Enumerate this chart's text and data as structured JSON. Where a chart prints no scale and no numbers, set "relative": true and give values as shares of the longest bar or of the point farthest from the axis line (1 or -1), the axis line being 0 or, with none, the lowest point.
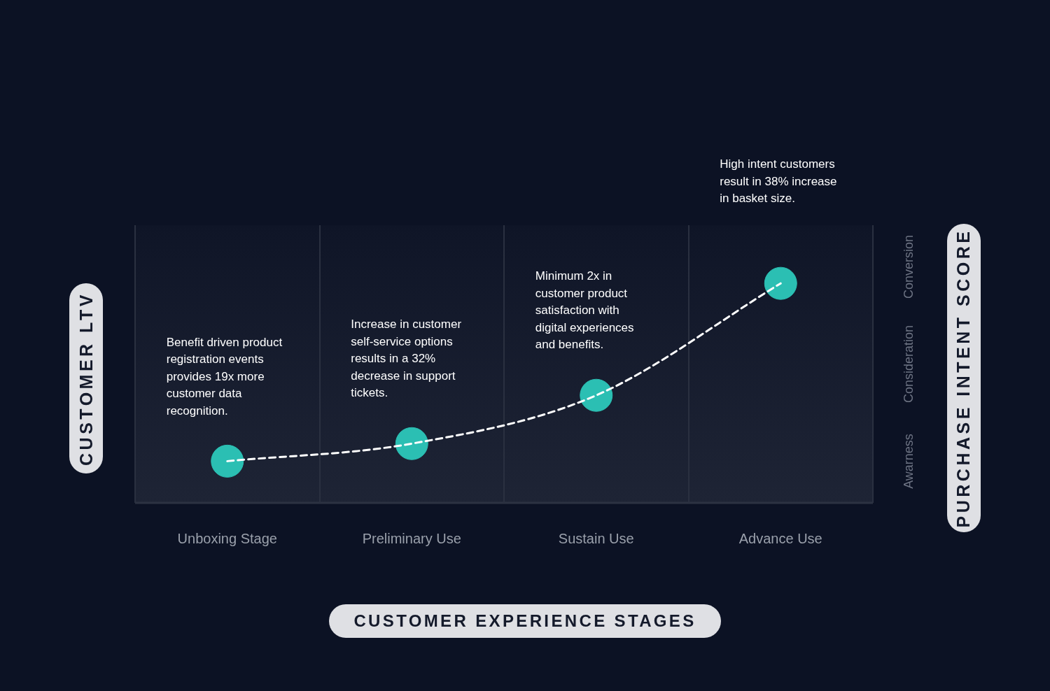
{
  "chart_data": {
    "type": "line",
    "relative": true,
    "xlabel": "CUSTOMER EXPERIENCE STAGES",
    "ylabel": "CUSTOMER LTV",
    "y2label": "PURCHASE INTENT SCORE",
    "categories": [
      "Unboxing Stage",
      "Preliminary Use",
      "Sustain Use",
      "Advance Use"
    ],
    "series": [
      {
        "color": "#ffffff",
        "marker": "none",
        "values": [
          0.19,
          0.27,
          0.49,
          1
        ]
      },
      {
        "type": "scatter",
        "color": "#2bbfb3",
        "values": [
          0.19,
          0.27,
          0.49,
          1
        ]
      }
    ],
    "marker": "circle",
    "line_style": "dashed",
    "grid": "x",
    "annotations": [
      "Benefit driven product registration events provides 19x more customer data recognition.",
      "Increase in customer self-service options results in a 32% decrease in support tickets.",
      "Minimum 2x in customer product satisfaction with digital experiences and benefits.",
      "High intent customers result in 38% increase in basket size.",
      "Awarness",
      "Consideration",
      "Conversion"
    ]
  }
}
